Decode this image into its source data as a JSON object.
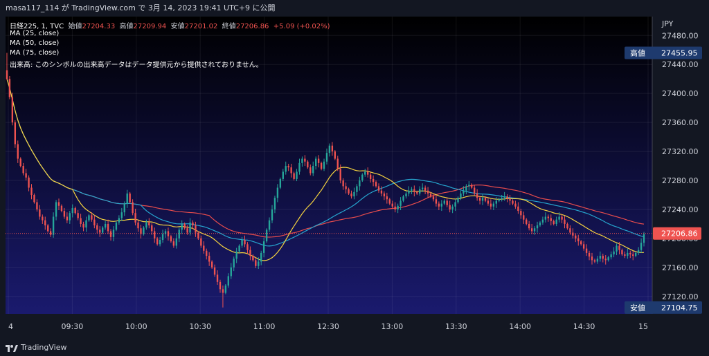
{
  "header": {
    "publisher_text": "masa117_114 が TradingView.com で 3月 14, 2023 19:41 UTC+9 に公開"
  },
  "legend": {
    "symbol": "日経225, 1, TVC",
    "open_label": "始値",
    "open_value": "27204.33",
    "high_label": "高値",
    "high_value": "27209.94",
    "low_label": "安値",
    "low_value": "27201.02",
    "close_label": "終値",
    "close_value": "27206.86",
    "change": "+5.09 (+0.02%)",
    "ma1": "MA (25, close)",
    "ma2": "MA (50, close)",
    "ma3": "MA (75, close)",
    "volume_note": "出来高: このシンボルの出来高データはデータ提供元から提供されておりません。"
  },
  "footer": {
    "brand": "TradingView"
  },
  "colors": {
    "up": "#26a69a",
    "down": "#ef5350",
    "ma25": "#f5d33f",
    "ma50": "#26a6cf",
    "ma75": "#e84c4c",
    "bg_top": "#000000",
    "bg_bottom": "#1a1a6e",
    "high_tag": "#1e3a6e",
    "close_tag": "#ef5350"
  },
  "chart_data": {
    "type": "candlestick",
    "currency": "JPY",
    "x_tick_labels": [
      "4",
      "09:30",
      "10:00",
      "10:30",
      "11:00",
      "12:30",
      "13:00",
      "13:30",
      "14:00",
      "14:30",
      "15"
    ],
    "y_ticks": [
      27120,
      27160,
      27200,
      27240,
      27280,
      27320,
      27360,
      27400,
      27440,
      27480
    ],
    "ylim": [
      27096,
      27506
    ],
    "high_label": "高値",
    "high_value": 27455.95,
    "low_label": "安値",
    "low_value": 27104.75,
    "last_close": 27206.86,
    "close_series": [
      27420,
      27395,
      27360,
      27330,
      27310,
      27300,
      27290,
      27284,
      27270,
      27260,
      27250,
      27240,
      27230,
      27225,
      27218,
      27210,
      27205,
      27230,
      27250,
      27245,
      27238,
      27230,
      27225,
      27235,
      27242,
      27235,
      27228,
      27220,
      27215,
      27225,
      27232,
      27226,
      27218,
      27212,
      27208,
      27215,
      27220,
      27210,
      27202,
      27212,
      27222,
      27228,
      27236,
      27248,
      27262,
      27250,
      27235,
      27222,
      27214,
      27206,
      27215,
      27222,
      27218,
      27210,
      27200,
      27192,
      27198,
      27206,
      27210,
      27203,
      27196,
      27190,
      27200,
      27212,
      27220,
      27214,
      27208,
      27222,
      27218,
      27208,
      27200,
      27190,
      27183,
      27176,
      27168,
      27160,
      27150,
      27140,
      27130,
      27125,
      27135,
      27148,
      27160,
      27172,
      27182,
      27190,
      27198,
      27192,
      27184,
      27176,
      27170,
      27162,
      27168,
      27180,
      27196,
      27212,
      27225,
      27240,
      27256,
      27270,
      27282,
      27292,
      27300,
      27298,
      27290,
      27282,
      27292,
      27304,
      27310,
      27306,
      27298,
      27290,
      27300,
      27310,
      27304,
      27296,
      27306,
      27318,
      27328,
      27320,
      27310,
      27296,
      27280,
      27272,
      27268,
      27262,
      27258,
      27264,
      27272,
      27280,
      27288,
      27292,
      27288,
      27282,
      27278,
      27272,
      27266,
      27262,
      27258,
      27254,
      27248,
      27244,
      27240,
      27245,
      27252,
      27258,
      27262,
      27266,
      27268,
      27264,
      27262,
      27268,
      27270,
      27266,
      27262,
      27258,
      27254,
      27248,
      27244,
      27248,
      27252,
      27246,
      27240,
      27244,
      27250,
      27256,
      27262,
      27266,
      27272,
      27274,
      27270,
      27262,
      27256,
      27252,
      27256,
      27252,
      27248,
      27244,
      27248,
      27252,
      27254,
      27256,
      27258,
      27255,
      27252,
      27248,
      27244,
      27238,
      27232,
      27226,
      27220,
      27214,
      27210,
      27214,
      27218,
      27222,
      27226,
      27230,
      27228,
      27224,
      27220,
      27226,
      27230,
      27226,
      27220,
      27214,
      27208,
      27204,
      27200,
      27196,
      27192,
      27186,
      27180,
      27175,
      27170,
      27168,
      27172,
      27176,
      27172,
      27170,
      27174,
      27178,
      27182,
      27190,
      27184,
      27178,
      27176,
      27180,
      27178,
      27176,
      27180,
      27184,
      27194,
      27206
    ]
  }
}
